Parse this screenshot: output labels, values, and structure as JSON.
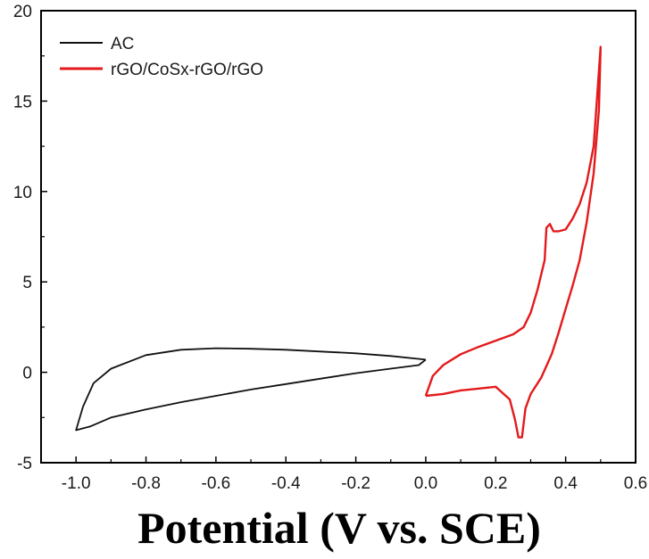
{
  "chart_data": {
    "type": "line",
    "title": "",
    "xlabel": "Potential (V vs. SCE)",
    "ylabel": "",
    "xlim": [
      -1.1,
      0.6
    ],
    "ylim": [
      -5,
      20
    ],
    "x_ticks": [
      -1.0,
      -0.8,
      -0.6,
      -0.4,
      -0.2,
      0.0,
      0.2,
      0.4,
      0.6
    ],
    "x_tick_labels": [
      "-1.0",
      "-0.8",
      "-0.6",
      "-0.4",
      "-0.2",
      "0.0",
      "0.2",
      "0.4",
      "0.6"
    ],
    "y_ticks": [
      -5,
      0,
      5,
      10,
      15,
      20
    ],
    "y_tick_labels": [
      "-5",
      "0",
      "5",
      "10",
      "15",
      "20"
    ],
    "grid": false,
    "legend_position": "top-left",
    "series": [
      {
        "name": "AC",
        "color": "#111111",
        "x": [
          0.0,
          -0.1,
          -0.2,
          -0.3,
          -0.4,
          -0.5,
          -0.6,
          -0.7,
          -0.8,
          -0.9,
          -0.95,
          -0.98,
          -1.0,
          -0.96,
          -0.9,
          -0.8,
          -0.7,
          -0.6,
          -0.5,
          -0.4,
          -0.3,
          -0.2,
          -0.1,
          -0.02,
          0.0
        ],
        "y": [
          0.7,
          0.9,
          1.05,
          1.15,
          1.25,
          1.3,
          1.33,
          1.25,
          0.95,
          0.2,
          -0.6,
          -1.9,
          -3.2,
          -3.0,
          -2.5,
          -2.05,
          -1.65,
          -1.3,
          -0.95,
          -0.65,
          -0.35,
          -0.05,
          0.2,
          0.4,
          0.7
        ]
      },
      {
        "name": "rGO/CoSx-rGO/rGO",
        "color": "#e31a1c",
        "x": [
          0.0,
          0.02,
          0.05,
          0.1,
          0.15,
          0.2,
          0.25,
          0.28,
          0.3,
          0.32,
          0.34,
          0.345,
          0.355,
          0.365,
          0.38,
          0.4,
          0.42,
          0.44,
          0.46,
          0.48,
          0.5,
          0.495,
          0.48,
          0.46,
          0.44,
          0.42,
          0.4,
          0.38,
          0.36,
          0.33,
          0.3,
          0.285,
          0.275,
          0.265,
          0.255,
          0.24,
          0.2,
          0.15,
          0.1,
          0.05,
          0.0
        ],
        "y": [
          -1.3,
          -0.2,
          0.4,
          1.0,
          1.4,
          1.75,
          2.1,
          2.5,
          3.3,
          4.6,
          6.2,
          8.0,
          8.2,
          7.8,
          7.8,
          7.9,
          8.5,
          9.3,
          10.5,
          12.5,
          18.0,
          14.5,
          11.0,
          8.3,
          6.2,
          4.8,
          3.5,
          2.2,
          1.0,
          -0.3,
          -1.2,
          -2.0,
          -3.6,
          -3.6,
          -2.6,
          -1.5,
          -0.8,
          -0.9,
          -1.0,
          -1.2,
          -1.3
        ]
      }
    ]
  }
}
